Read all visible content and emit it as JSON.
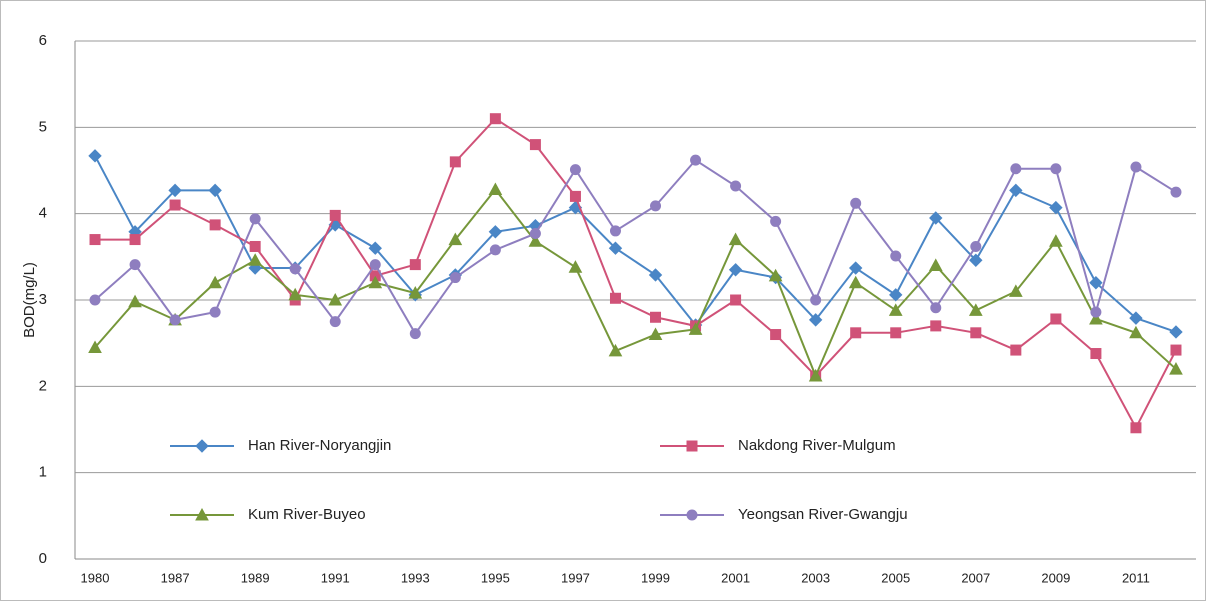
{
  "chart_data": {
    "type": "line",
    "ylabel": "BOD(mg/L)",
    "categories": [
      "1980",
      null,
      "1987",
      null,
      "1989",
      null,
      "1991",
      null,
      "1993",
      null,
      "1995",
      null,
      "1997",
      null,
      "1999",
      null,
      "2001",
      null,
      "2003",
      null,
      "2005",
      null,
      "2007",
      null,
      "2009",
      null,
      "2011",
      null
    ],
    "series": [
      {
        "name": "Han River-Noryangjin",
        "color": "#4a86c6",
        "marker": "diamond",
        "values": [
          4.67,
          3.79,
          4.27,
          4.27,
          3.37,
          3.37,
          3.87,
          3.6,
          3.06,
          3.29,
          3.79,
          3.86,
          4.07,
          3.6,
          3.29,
          2.71,
          3.35,
          3.26,
          2.77,
          3.37,
          3.06,
          3.95,
          3.46,
          4.27,
          4.07,
          3.2,
          2.79,
          2.63
        ]
      },
      {
        "name": "Nakdong River-Mulgum",
        "color": "#d05278",
        "marker": "square",
        "values": [
          3.7,
          3.7,
          4.1,
          3.87,
          3.62,
          3.0,
          3.98,
          3.28,
          3.41,
          4.6,
          5.1,
          4.8,
          4.2,
          3.02,
          2.8,
          2.7,
          3.0,
          2.6,
          2.12,
          2.62,
          2.62,
          2.7,
          2.62,
          2.42,
          2.78,
          2.38,
          1.52,
          2.42
        ]
      },
      {
        "name": "Kum River-Buyeo",
        "color": "#76973a",
        "marker": "triangle",
        "values": [
          2.45,
          2.98,
          2.77,
          3.2,
          3.46,
          3.06,
          3.0,
          3.2,
          3.08,
          3.7,
          4.28,
          3.68,
          3.38,
          2.41,
          2.6,
          2.66,
          3.7,
          3.28,
          2.12,
          3.2,
          2.88,
          3.4,
          2.88,
          3.1,
          3.68,
          2.78,
          2.62,
          2.2
        ]
      },
      {
        "name": "Yeongsan River-Gwangju",
        "color": "#8e7ebf",
        "marker": "circle",
        "values": [
          3.0,
          3.41,
          2.77,
          2.86,
          3.94,
          3.36,
          2.75,
          3.41,
          2.61,
          3.26,
          3.58,
          3.77,
          4.51,
          3.8,
          4.09,
          4.62,
          4.32,
          3.91,
          3.0,
          4.12,
          3.51,
          2.91,
          3.62,
          4.52,
          4.52,
          2.86,
          4.54,
          4.25
        ]
      }
    ],
    "ylim": [
      0,
      6
    ],
    "yticks": [
      0,
      1,
      2,
      3,
      4,
      5,
      6
    ],
    "grid": true
  }
}
